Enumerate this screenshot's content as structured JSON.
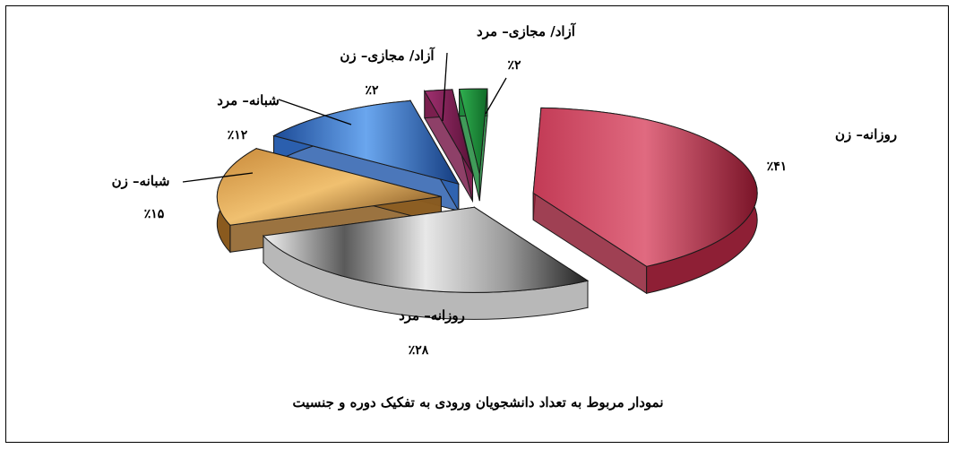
{
  "chart_data": {
    "type": "pie",
    "title": "",
    "caption": "نمودار مربوط به تعداد دانشجویان ورودی به تفکیک دوره و جنسیت",
    "slices": [
      {
        "label": "روزانه– زن",
        "value": 41,
        "value_label": "٪۴۱",
        "color": "#8e1f35"
      },
      {
        "label": "روزانه– مرد",
        "value": 28,
        "value_label": "٪۲۸",
        "color": "#b8b8b8"
      },
      {
        "label": "شبانه– زن",
        "value": 15,
        "value_label": "٪۱۵",
        "color": "#8a5a1e"
      },
      {
        "label": "شبانه– مرد",
        "value": 12,
        "value_label": "٪۱۲",
        "color": "#2b5fae"
      },
      {
        "label": "آزاد/ مجازی– زن",
        "value": 2,
        "value_label": "٪۲",
        "color": "#7a1f4e"
      },
      {
        "label": "آزاد/ مجازی– مرد",
        "value": 2,
        "value_label": "٪۲",
        "color": "#1e8a3c"
      }
    ]
  }
}
